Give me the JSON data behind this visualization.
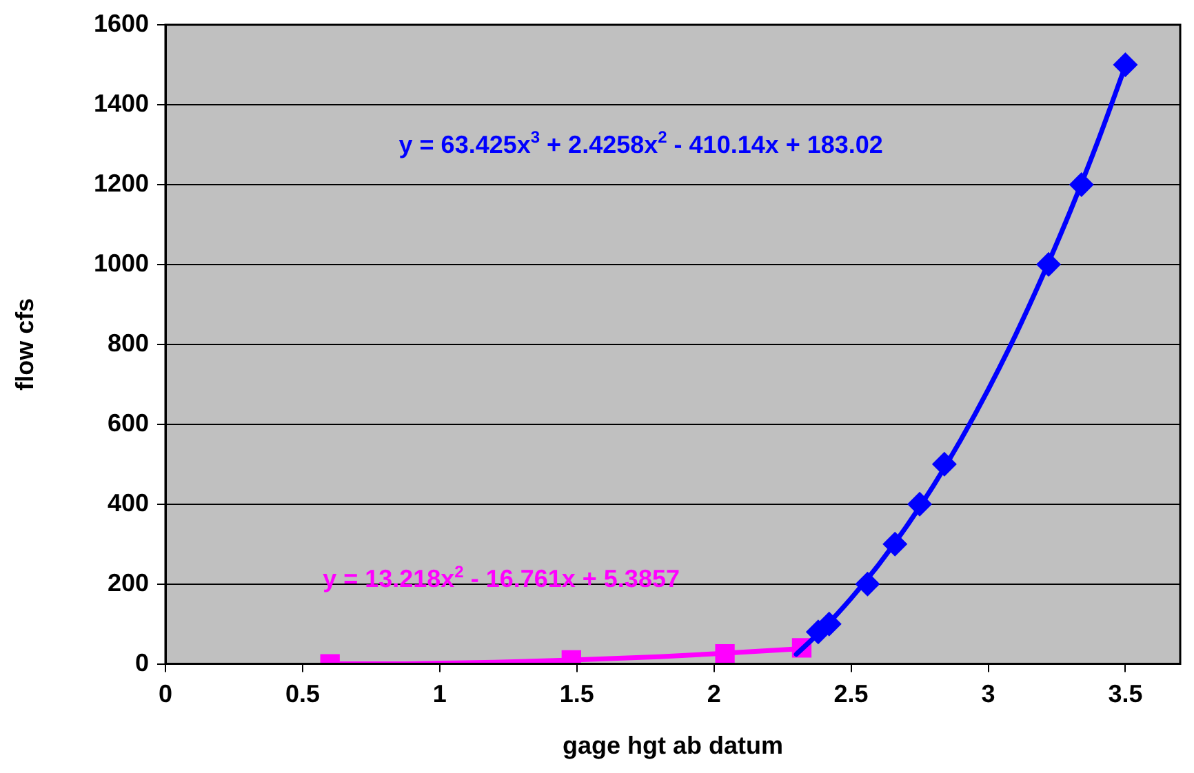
{
  "chart_data": {
    "type": "scatter",
    "xlabel": "gage hgt ab datum",
    "ylabel": "flow cfs",
    "xlim": [
      0,
      3.7
    ],
    "xticks": [
      0,
      0.5,
      1,
      1.5,
      2,
      2.5,
      3,
      3.5
    ],
    "ylim": [
      0,
      1600
    ],
    "yticks": [
      0,
      200,
      400,
      600,
      800,
      1000,
      1200,
      1400,
      1600
    ],
    "grid": "y",
    "legend": false,
    "series": [
      {
        "type": "line",
        "color": "#0000ff",
        "marker": "none",
        "x": [
          2.3,
          2.4,
          2.5,
          2.6,
          2.7,
          2.8,
          2.9,
          3.0,
          3.1,
          3.2,
          3.3,
          3.4,
          3.5
        ],
        "values": [
          24,
          89,
          164,
          248,
          342,
          446,
          561,
          687,
          824,
          974,
          1135,
          1309,
          1497
        ]
      },
      {
        "type": "line",
        "color": "#ff00ff",
        "marker": "none",
        "x": [
          0.6,
          0.8,
          1.0,
          1.2,
          1.5,
          1.8,
          2.0,
          2.32
        ],
        "values": [
          0,
          0,
          2,
          4,
          10,
          18,
          25,
          38
        ]
      },
      {
        "type": "scatter",
        "color": "#0000ff",
        "marker": "diamond",
        "x": [
          2.38,
          2.42,
          2.56,
          2.66,
          2.75,
          2.84,
          3.22,
          3.34,
          3.5
        ],
        "values": [
          80,
          100,
          200,
          300,
          400,
          500,
          1000,
          1200,
          1500
        ]
      },
      {
        "type": "scatter",
        "color": "#ff00ff",
        "marker": "square",
        "x": [
          0.6,
          1.48,
          2.04,
          2.32
        ],
        "values": [
          0,
          10,
          25,
          40
        ]
      }
    ],
    "annotations": [
      "y = 63.425x$^{3}$ + 2.4258x$^{2}$ - 410.14x + 183.02",
      "y = 13.218x$^{2}$ - 16.761x + 5.3857"
    ]
  }
}
